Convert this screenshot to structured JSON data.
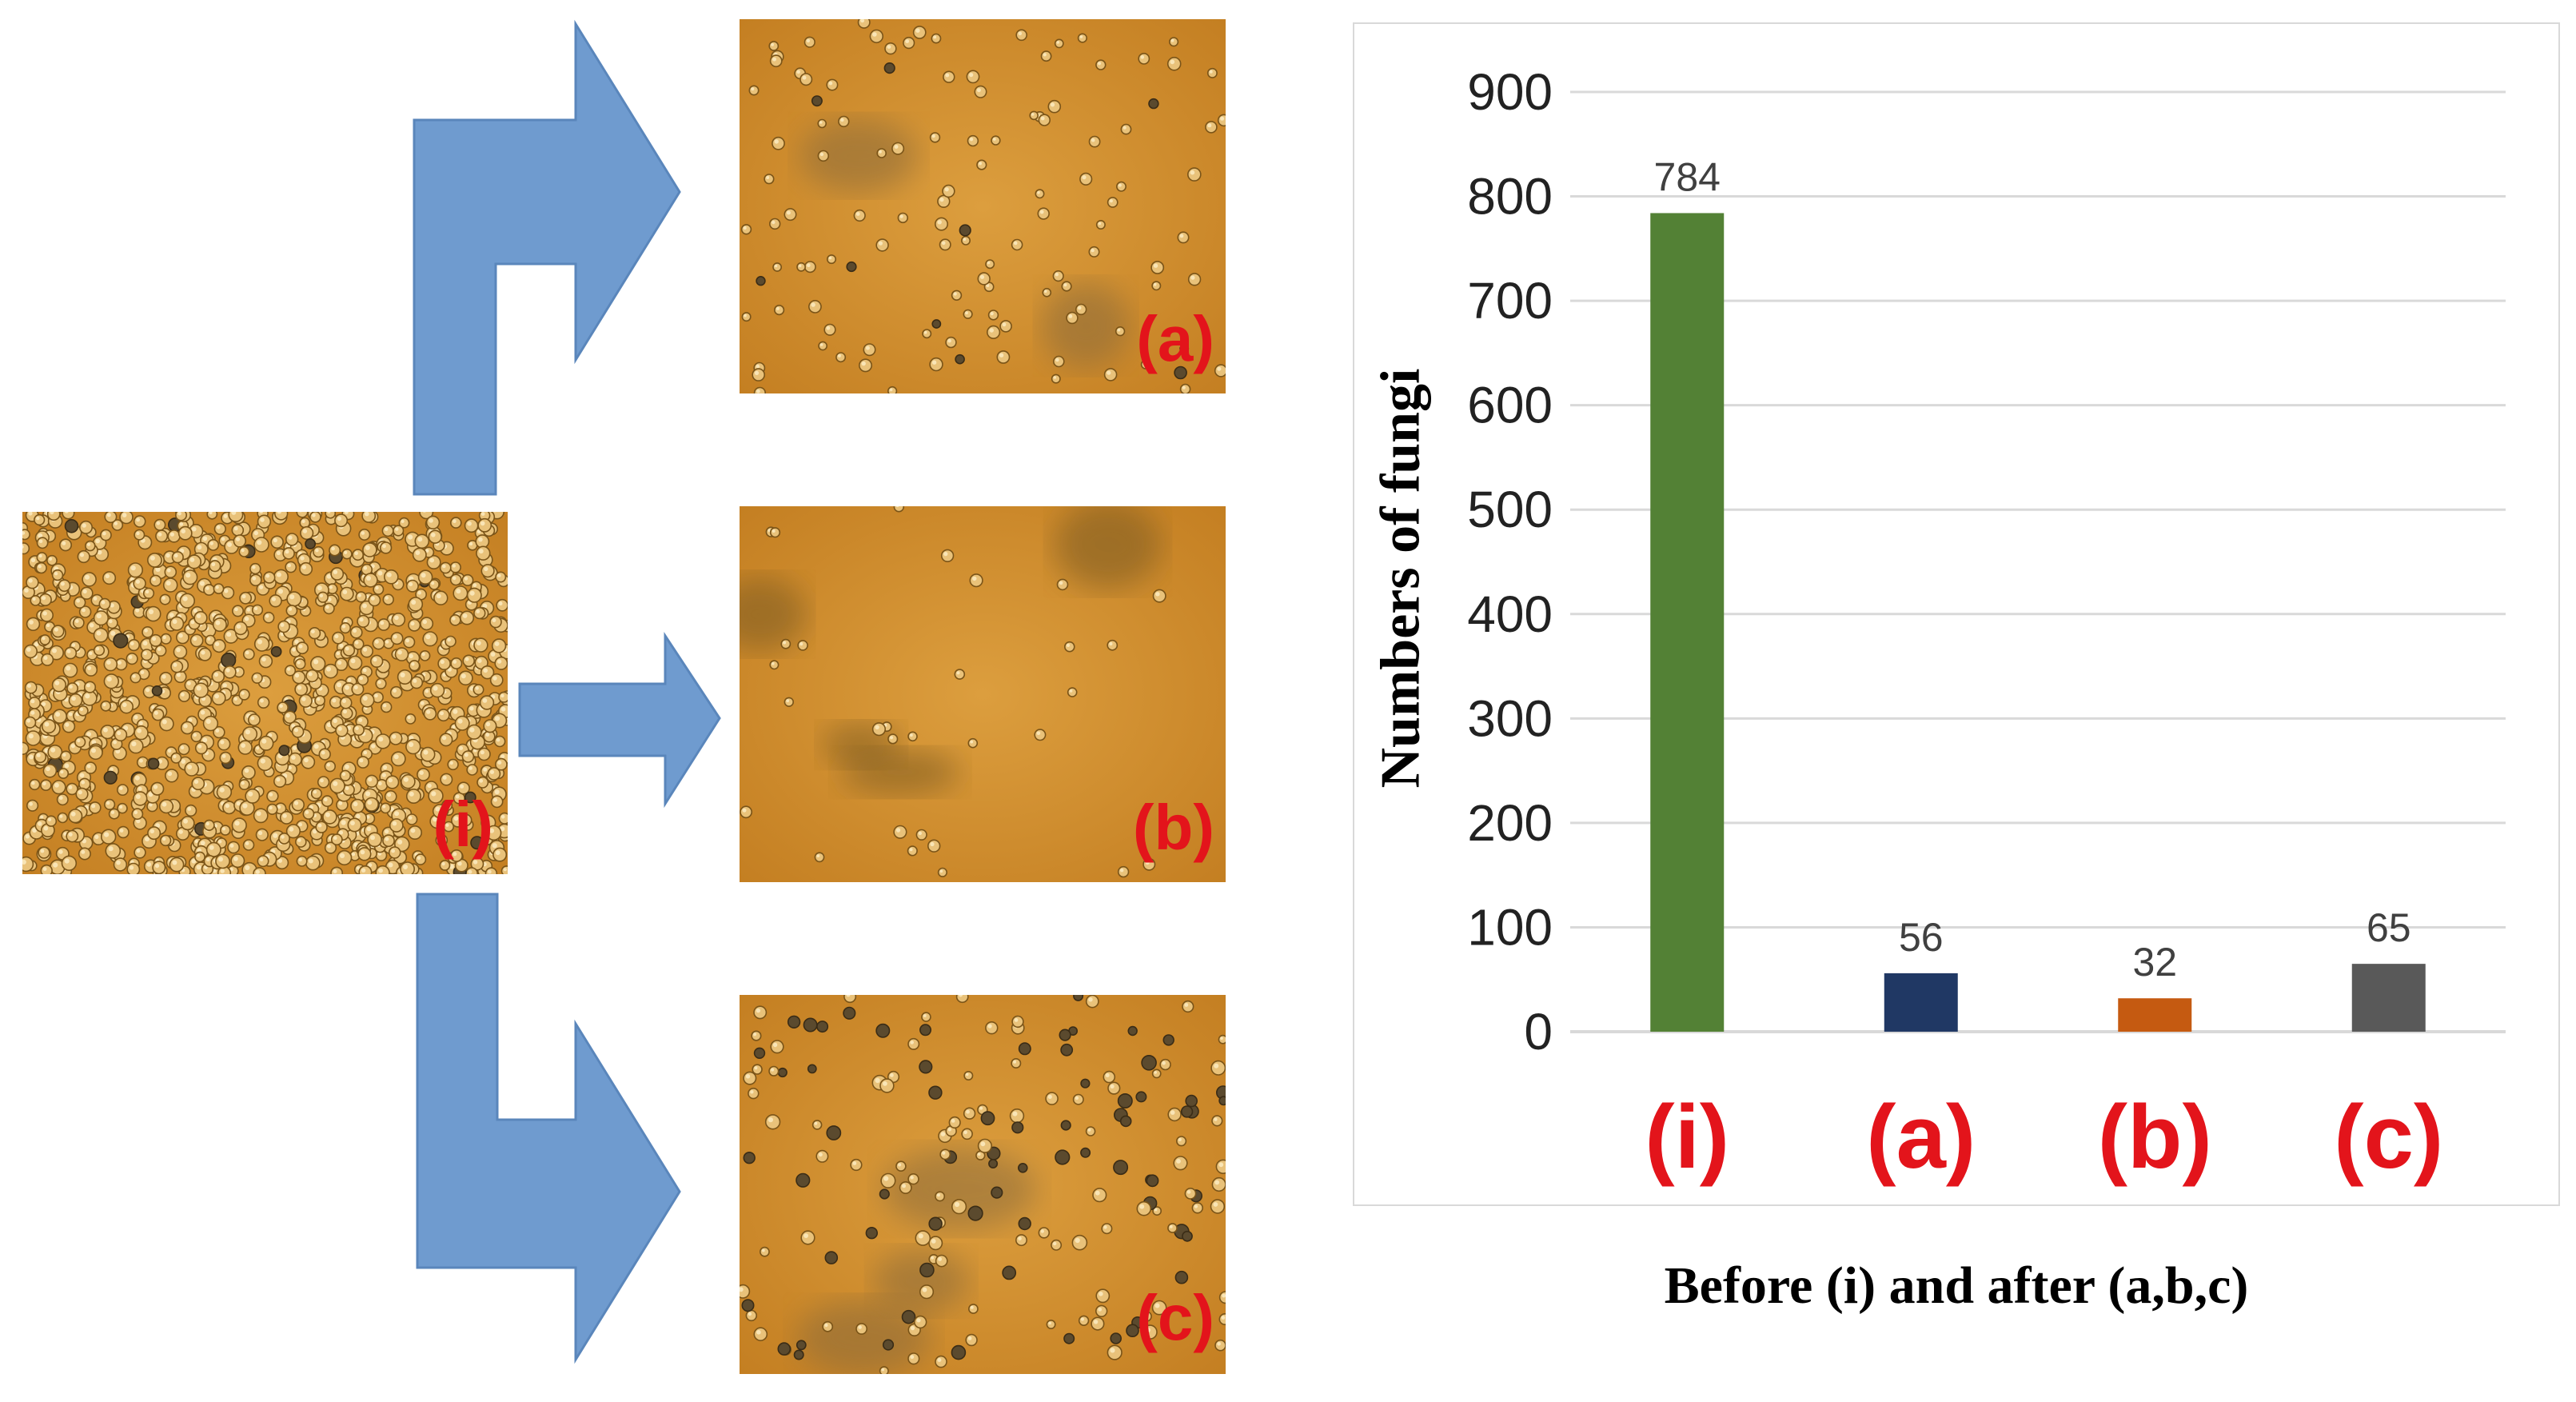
{
  "colors": {
    "arrow": "#6f9bcf",
    "arrow_edge": "#5a86bb",
    "micro_bg": "#d2912e",
    "label_red": "#e3141b",
    "grid": "#d9d9d9",
    "tick_text": "#222222",
    "value_text": "#404040"
  },
  "panels": [
    {
      "key": "i",
      "label": "(i)",
      "density": "very-high"
    },
    {
      "key": "a",
      "label": "(a)",
      "density": "low"
    },
    {
      "key": "b",
      "label": "(b)",
      "density": "very-low"
    },
    {
      "key": "c",
      "label": "(c)",
      "density": "low-dark"
    }
  ],
  "chart_data": {
    "type": "bar",
    "categories": [
      "(i)",
      "(a)",
      "(b)",
      "(c)"
    ],
    "values": [
      784,
      56,
      32,
      65
    ],
    "value_labels": [
      "784",
      "56",
      "32",
      "65"
    ],
    "bar_colors": [
      "#538135",
      "#203864",
      "#c55a11",
      "#595959"
    ],
    "ylabel": "Numbers of fungi",
    "xlabel": "Before (i) and after (a,b,c)",
    "ylim": [
      0,
      900
    ],
    "yticks": [
      "0",
      "100",
      "200",
      "300",
      "400",
      "500",
      "600",
      "700",
      "800",
      "900"
    ],
    "grid": true,
    "legend": "none"
  }
}
